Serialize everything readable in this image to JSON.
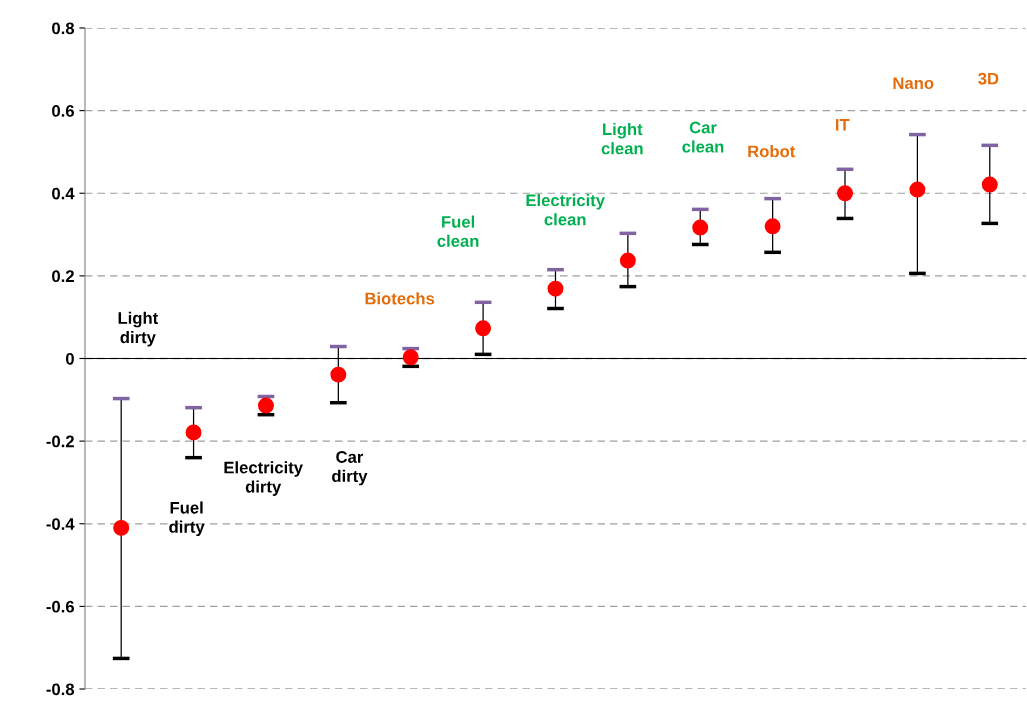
{
  "chart_data": {
    "type": "scatter",
    "categories": [
      null,
      null,
      null,
      null,
      null,
      null,
      null,
      null,
      null,
      null,
      null,
      null,
      null
    ],
    "series": [
      {
        "color": "#ff0000",
        "values": [
          -0.41,
          -0.179,
          -0.114,
          -0.039,
          0.003,
          0.073,
          0.169,
          0.237,
          0.317,
          0.32,
          0.4,
          0.409,
          0.421
        ],
        "errors": [
          [
            -0.726,
            -0.097
          ],
          [
            -0.24,
            -0.119
          ],
          [
            -0.136,
            -0.092
          ],
          [
            -0.107,
            0.029
          ],
          [
            -0.019,
            0.024
          ],
          [
            0.01,
            0.136
          ],
          [
            0.121,
            0.215
          ],
          [
            0.174,
            0.303
          ],
          [
            0.276,
            0.361
          ],
          [
            0.257,
            0.387
          ],
          [
            0.339,
            0.458
          ],
          [
            0.206,
            0.542
          ],
          [
            0.327,
            0.516
          ]
        ]
      }
    ],
    "annotations": [
      "Light\ndirty",
      "Fuel\ndirty",
      "Electricity\ndirty",
      "Car\ndirty",
      "Biotechs",
      "Fuel\nclean",
      "Electricity\nclean",
      "Light\nclean",
      "Car\nclean",
      "Robot",
      "IT",
      "Nano",
      "3D"
    ],
    "ylim": [
      -0.8,
      0.8
    ],
    "yticks": [
      {
        "value": -0.8,
        "label": "-0.8"
      },
      {
        "value": -0.6,
        "label": "-0.6"
      },
      {
        "value": -0.4,
        "label": "-0.4"
      },
      {
        "value": -0.2,
        "label": "-0.2"
      },
      0,
      0.2,
      0.4,
      0.6,
      0.8
    ],
    "grid": "y",
    "marker": "circle",
    "tick_labels": "y"
  }
}
